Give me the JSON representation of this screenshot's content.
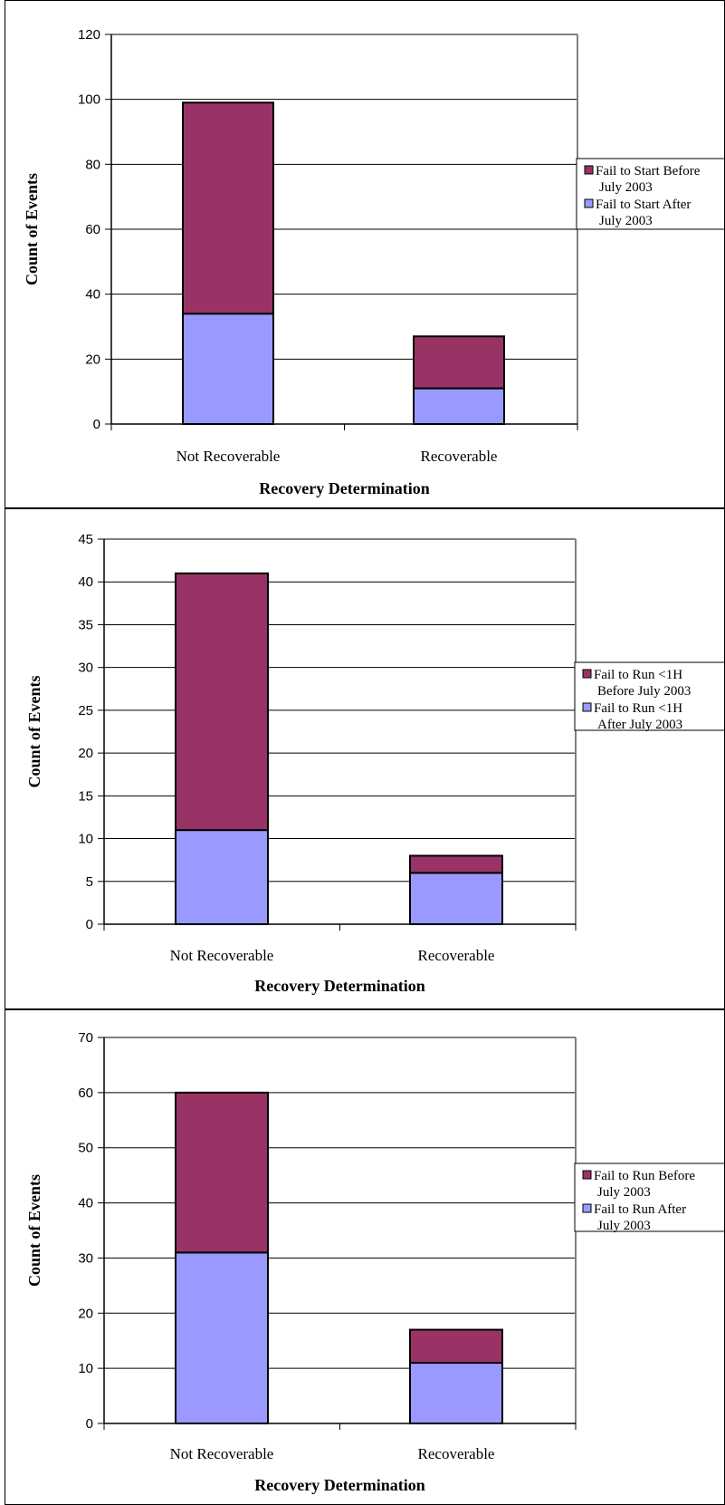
{
  "colors": {
    "before": "#993366",
    "after": "#9999ff",
    "axis": "#000000",
    "grid": "#000000"
  },
  "chart_data": [
    {
      "type": "bar",
      "stacked": true,
      "categories": [
        "Not Recoverable",
        "Recoverable"
      ],
      "series": [
        {
          "name": "Fail to Start After July 2003",
          "name_lines": [
            "Fail to Start After",
            "July 2003"
          ],
          "values": [
            34,
            11
          ],
          "color": "#9999ff"
        },
        {
          "name": "Fail to Start Before July 2003",
          "name_lines": [
            "Fail to Start Before",
            "July 2003"
          ],
          "values": [
            65,
            16
          ],
          "color": "#993366"
        }
      ],
      "xlabel": "Recovery Determination",
      "ylabel": "Count of Events",
      "ylim": [
        0,
        120
      ],
      "yticks": [
        0,
        20,
        40,
        60,
        80,
        100,
        120
      ],
      "grid": true,
      "legend": "right"
    },
    {
      "type": "bar",
      "stacked": true,
      "categories": [
        "Not Recoverable",
        "Recoverable"
      ],
      "series": [
        {
          "name": "Fail to Run <1H After July 2003",
          "name_lines": [
            "Fail to Run <1H",
            "After July 2003"
          ],
          "values": [
            11,
            6
          ],
          "color": "#9999ff"
        },
        {
          "name": "Fail to Run <1H Before July 2003",
          "name_lines": [
            "Fail to Run <1H",
            "Before July 2003"
          ],
          "values": [
            30,
            2
          ],
          "color": "#993366"
        }
      ],
      "xlabel": "Recovery Determination",
      "ylabel": "Count of Events",
      "ylim": [
        0,
        45
      ],
      "yticks": [
        0,
        5,
        10,
        15,
        20,
        25,
        30,
        35,
        40,
        45
      ],
      "grid": true,
      "legend": "right"
    },
    {
      "type": "bar",
      "stacked": true,
      "categories": [
        "Not Recoverable",
        "Recoverable"
      ],
      "series": [
        {
          "name": "Fail to Run After July 2003",
          "name_lines": [
            "Fail to Run After",
            "July 2003"
          ],
          "values": [
            31,
            11
          ],
          "color": "#9999ff"
        },
        {
          "name": "Fail to Run Before July 2003",
          "name_lines": [
            "Fail to Run Before",
            "July 2003"
          ],
          "values": [
            29,
            6
          ],
          "color": "#993366"
        }
      ],
      "xlabel": "Recovery Determination",
      "ylabel": "Count of Events",
      "ylim": [
        0,
        70
      ],
      "yticks": [
        0,
        10,
        20,
        30,
        40,
        50,
        60,
        70
      ],
      "grid": true,
      "legend": "right"
    }
  ]
}
